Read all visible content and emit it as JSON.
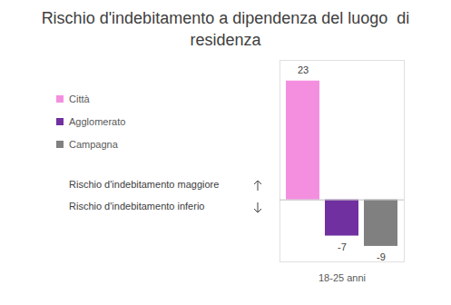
{
  "chart_data": {
    "type": "bar",
    "title": "Rischio d'indebitamento a dipendenza del luogo  di residenza",
    "categories": [
      "18-25 anni"
    ],
    "series": [
      {
        "name": "Città",
        "color": "#f48fe0",
        "values": [
          23
        ]
      },
      {
        "name": "Agglomerato",
        "color": "#7030a0",
        "values": [
          -7
        ]
      },
      {
        "name": "Campagna",
        "color": "#808080",
        "values": [
          -9
        ]
      }
    ],
    "ylim": [
      -12,
      27
    ],
    "annotations": [
      "Rischio d'indebitamento maggiore",
      "Rischio d'indebitamento inferio"
    ],
    "legend": "top-left",
    "data_labels": true,
    "tick_labels": "x"
  }
}
